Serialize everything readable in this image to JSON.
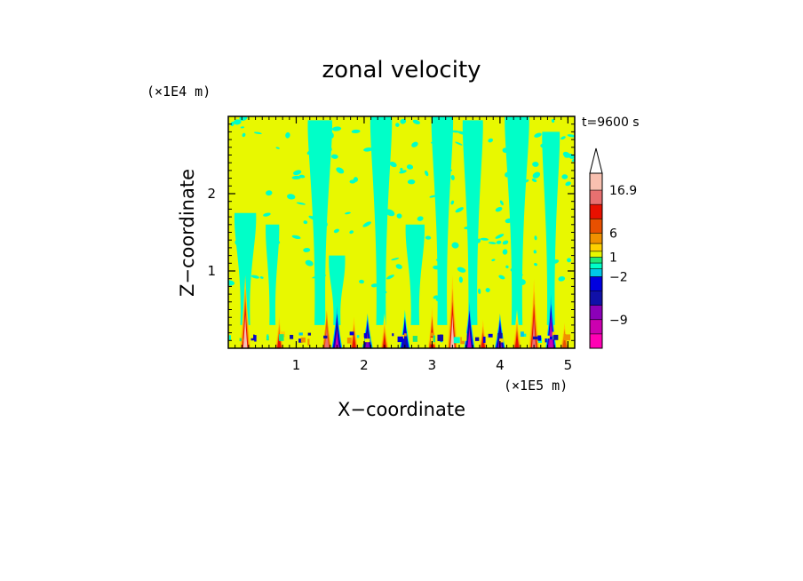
{
  "chart_data": {
    "type": "heatmap",
    "title": "zonal velocity",
    "xlabel": "X−coordinate",
    "ylabel": "Z−coordinate",
    "x_unit": "(×1E5 m)",
    "y_unit": "(×1E4 m)",
    "time_label": "t=9600 s",
    "xlim": [
      0,
      5.1
    ],
    "ylim": [
      0,
      3.0
    ],
    "x_ticks": [
      1,
      2,
      3,
      4,
      5
    ],
    "y_ticks": [
      1,
      2
    ],
    "background_value": 0,
    "updraft_plumes": [
      {
        "x": 0.25,
        "top": 1.75,
        "width": 0.16
      },
      {
        "x": 0.65,
        "top": 1.6,
        "width": 0.1
      },
      {
        "x": 1.35,
        "top": 2.95,
        "width": 0.18
      },
      {
        "x": 1.6,
        "top": 1.2,
        "width": 0.12
      },
      {
        "x": 2.25,
        "top": 3.0,
        "width": 0.16
      },
      {
        "x": 2.75,
        "top": 1.6,
        "width": 0.14
      },
      {
        "x": 3.15,
        "top": 3.0,
        "width": 0.16
      },
      {
        "x": 3.6,
        "top": 2.95,
        "width": 0.15
      },
      {
        "x": 4.25,
        "top": 3.0,
        "width": 0.18
      },
      {
        "x": 4.75,
        "top": 2.8,
        "width": 0.13
      }
    ],
    "surface_jets": [
      {
        "x": 0.25,
        "height": 0.95,
        "strength": 17
      },
      {
        "x": 0.75,
        "height": 0.5,
        "strength": 8
      },
      {
        "x": 1.45,
        "height": 0.6,
        "strength": 12
      },
      {
        "x": 1.6,
        "height": 0.55,
        "strength": -10
      },
      {
        "x": 1.85,
        "height": 0.5,
        "strength": 9
      },
      {
        "x": 2.05,
        "height": 0.45,
        "strength": -8
      },
      {
        "x": 2.3,
        "height": 0.45,
        "strength": 8
      },
      {
        "x": 2.6,
        "height": 0.5,
        "strength": -6
      },
      {
        "x": 3.0,
        "height": 0.65,
        "strength": 10
      },
      {
        "x": 3.3,
        "height": 0.95,
        "strength": 17
      },
      {
        "x": 3.55,
        "height": 0.6,
        "strength": -10
      },
      {
        "x": 3.75,
        "height": 0.45,
        "strength": 8
      },
      {
        "x": 4.0,
        "height": 0.45,
        "strength": -7
      },
      {
        "x": 4.25,
        "height": 0.5,
        "strength": 9
      },
      {
        "x": 4.5,
        "height": 0.9,
        "strength": 15
      },
      {
        "x": 4.75,
        "height": 0.7,
        "strength": -11
      },
      {
        "x": 4.95,
        "height": 0.4,
        "strength": 7
      }
    ],
    "colorbar": {
      "levels": [
        -15,
        -12,
        -9,
        -6,
        -4,
        -2,
        -1,
        0,
        1,
        2,
        4,
        6,
        8,
        12,
        16.9
      ],
      "colors": [
        "#ff00b4",
        "#cc00b0",
        "#8c00b8",
        "#1010a8",
        "#0000e0",
        "#00c8e8",
        "#00ffc8",
        "#20e878",
        "#e8f800",
        "#ffd000",
        "#f09000",
        "#e85000",
        "#e81000",
        "#e87070",
        "#f8c0b0"
      ],
      "over_color": "#ffffff",
      "labels": [
        {
          "level": 16.9,
          "text": "16.9"
        },
        {
          "level": 6,
          "text": "6"
        },
        {
          "level": 1,
          "text": "1"
        },
        {
          "level": -2,
          "text": "−2"
        },
        {
          "level": -9,
          "text": "−9"
        }
      ]
    }
  }
}
